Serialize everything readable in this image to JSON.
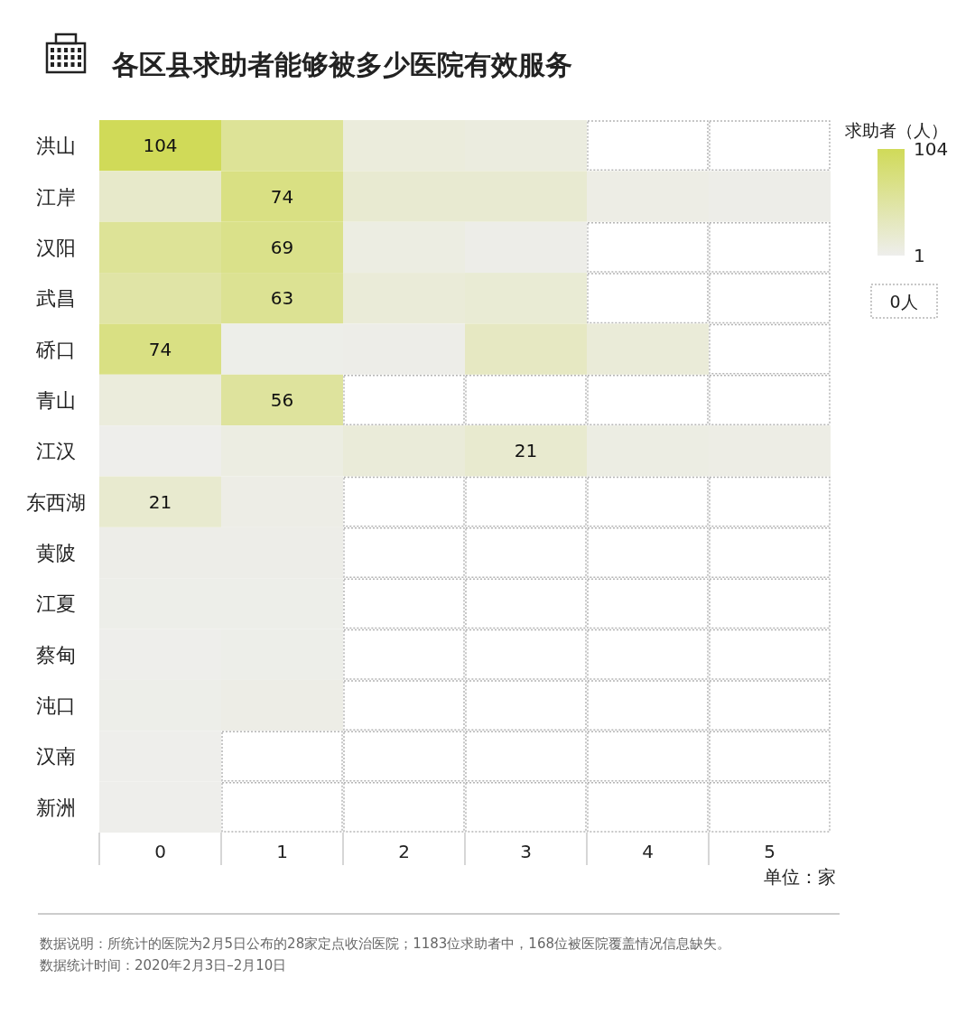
{
  "chart_data": {
    "type": "heatmap",
    "title": "各区县求助者能够被多少医院有效服务",
    "clabel": "求助者（人）",
    "xlabel": "单位：家",
    "categories": [
      "0",
      "1",
      "2",
      "3",
      "4",
      "5"
    ],
    "y_categories": [
      "洪山",
      "江岸",
      "汉阳",
      "武昌",
      "硚口",
      "青山",
      "江汉",
      "东西湖",
      "黄陂",
      "江夏",
      "蔡甸",
      "沌口",
      "汉南",
      "新洲"
    ],
    "cells": [
      [
        104,
        60,
        12,
        10,
        null,
        null
      ],
      [
        25,
        74,
        20,
        20,
        6,
        4
      ],
      [
        60,
        69,
        8,
        4,
        null,
        null
      ],
      [
        50,
        63,
        15,
        18,
        null,
        null
      ],
      [
        74,
        3,
        4,
        30,
        15,
        null
      ],
      [
        12,
        56,
        null,
        null,
        null,
        null
      ],
      [
        2,
        8,
        14,
        21,
        7,
        6
      ],
      [
        21,
        5,
        null,
        null,
        null,
        null
      ],
      [
        4,
        4,
        null,
        null,
        null,
        null
      ],
      [
        3,
        3,
        null,
        null,
        null,
        null
      ],
      [
        2,
        3,
        null,
        null,
        null,
        null
      ],
      [
        3,
        5,
        null,
        null,
        null,
        null
      ],
      [
        2,
        null,
        null,
        null,
        null,
        null
      ],
      [
        2,
        null,
        null,
        null,
        null,
        null
      ]
    ],
    "cell_labels": [
      [
        "104",
        null,
        null,
        null,
        null,
        null
      ],
      [
        null,
        "74",
        null,
        null,
        null,
        null
      ],
      [
        null,
        "69",
        null,
        null,
        null,
        null
      ],
      [
        null,
        "63",
        null,
        null,
        null,
        null
      ],
      [
        "74",
        null,
        null,
        null,
        null,
        null
      ],
      [
        null,
        "56",
        null,
        null,
        null,
        null
      ],
      [
        null,
        null,
        null,
        "21",
        null,
        null
      ],
      [
        "21",
        null,
        null,
        null,
        null,
        null
      ],
      [
        null,
        null,
        null,
        null,
        null,
        null
      ],
      [
        null,
        null,
        null,
        null,
        null,
        null
      ],
      [
        null,
        null,
        null,
        null,
        null,
        null
      ],
      [
        null,
        null,
        null,
        null,
        null,
        null
      ],
      [
        null,
        null,
        null,
        null,
        null,
        null
      ],
      [
        null,
        null,
        null,
        null,
        null,
        null
      ]
    ],
    "clim": [
      1,
      104
    ],
    "cticks": [
      1,
      104
    ],
    "annotations": [
      "0人",
      "数据说明：所统计的医院为2月5日公布的28家定点收治医院；1183位求助者中，168位被医院覆盖情况信息缺失。",
      "数据统计时间：2020年2月3日–2月10日"
    ]
  }
}
